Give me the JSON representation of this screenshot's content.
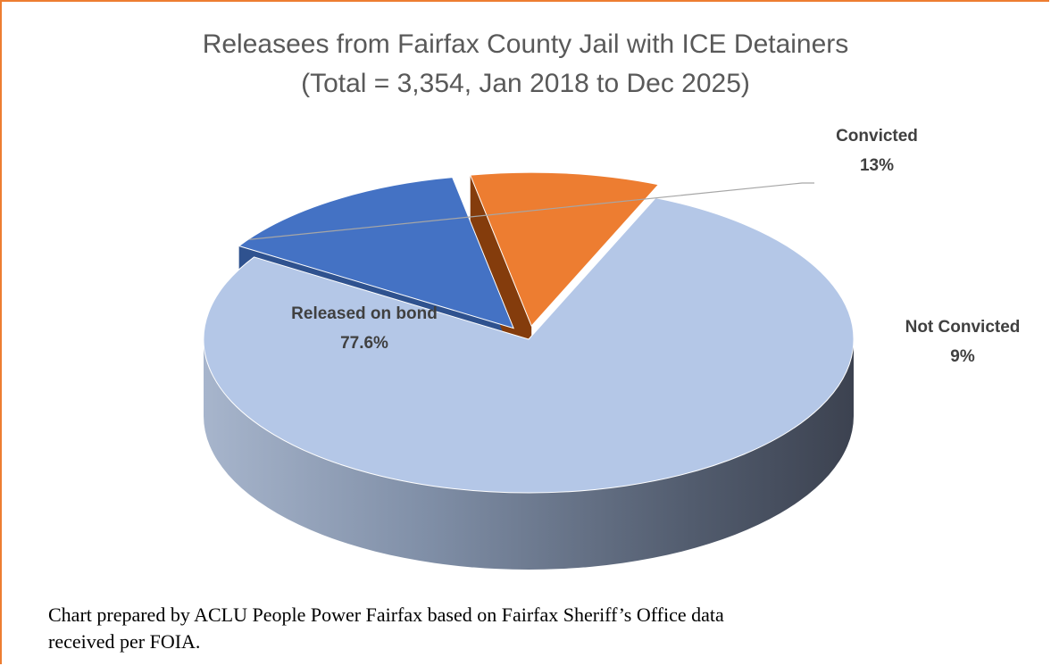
{
  "chart_data": {
    "type": "pie",
    "title": "Releasees from Fairfax County Jail with ICE Detainers",
    "subtitle": "(Total = 3,354, Jan 2018 to Dec 2025)",
    "slices": [
      {
        "name": "Released on bond",
        "label_value": "77.6%",
        "value": 77.6,
        "color": "#b4c7e7",
        "side_color": "#7f93b0"
      },
      {
        "name": "Convicted",
        "label_value": "13%",
        "value": 13.0,
        "color": "#4472c4",
        "side_color": "#2f528f"
      },
      {
        "name": "Not Convicted",
        "label_value": "9%",
        "value": 9.4,
        "color": "#ed7d31",
        "side_color": "#843c0c"
      }
    ],
    "style": "3d-exploded"
  },
  "caption": {
    "line1": "Chart prepared by ACLU People Power Fairfax based on Fairfax Sheriff’s Office data",
    "line2": "received per FOIA."
  },
  "colors": {
    "frame_border": "#ed7d31",
    "title_text": "#595959",
    "label_text": "#404040"
  }
}
